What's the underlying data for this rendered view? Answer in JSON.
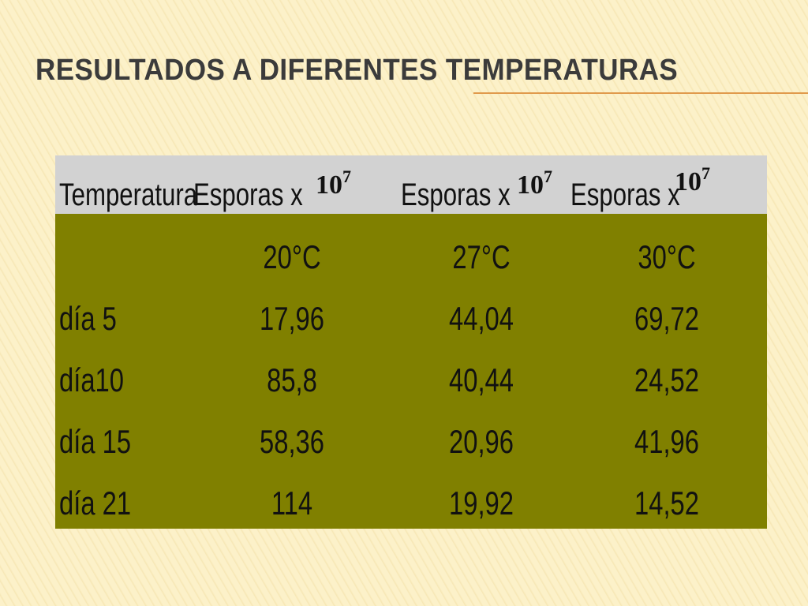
{
  "title": "RESULTADOS A DIFERENTES TEMPERATURAS",
  "table": {
    "header": [
      "Temperatura",
      {
        "label": "Esporas x",
        "base": "10",
        "exponent": "7"
      },
      {
        "label": "Esporas x",
        "base": "10",
        "exponent": "7"
      },
      {
        "label": "Esporas x",
        "base": "10",
        "exponent": "7"
      }
    ],
    "rows": [
      [
        "",
        "20°C",
        "27°C",
        "30°C"
      ],
      [
        "día 5",
        "17,96",
        "44,04",
        "69,72"
      ],
      [
        "día10",
        "85,8",
        "40,44",
        "24,52"
      ],
      [
        "día 15",
        "58,36",
        "20,96",
        "41,96"
      ],
      [
        "día 21",
        "114",
        "19,92",
        "14,52"
      ]
    ]
  }
}
